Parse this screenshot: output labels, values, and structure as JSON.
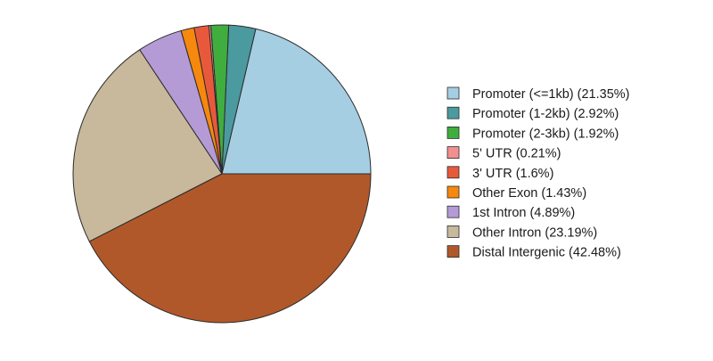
{
  "chart_data": {
    "type": "pie",
    "title": "",
    "start_angle_deg": 0,
    "direction": "counterclockwise",
    "legend_position": "right",
    "slices": [
      {
        "label": "Promoter (<=1kb) (21.35%)",
        "value": 21.35,
        "color": "#a6cee3"
      },
      {
        "label": "Promoter (1-2kb) (2.92%)",
        "value": 2.92,
        "color": "#4b9a9f"
      },
      {
        "label": "Promoter (2-3kb) (1.92%)",
        "value": 1.92,
        "color": "#3fae3f"
      },
      {
        "label": "5' UTR (0.21%)",
        "value": 0.21,
        "color": "#f38f8f"
      },
      {
        "label": "3' UTR (1.6%)",
        "value": 1.6,
        "color": "#e8593c"
      },
      {
        "label": "Other Exon (1.43%)",
        "value": 1.43,
        "color": "#f6880e"
      },
      {
        "label": "1st Intron (4.89%)",
        "value": 4.89,
        "color": "#b59bd6"
      },
      {
        "label": "Other Intron (23.19%)",
        "value": 23.19,
        "color": "#c8b89c"
      },
      {
        "label": "Distal Intergenic (42.48%)",
        "value": 42.48,
        "color": "#b1582a"
      }
    ]
  }
}
